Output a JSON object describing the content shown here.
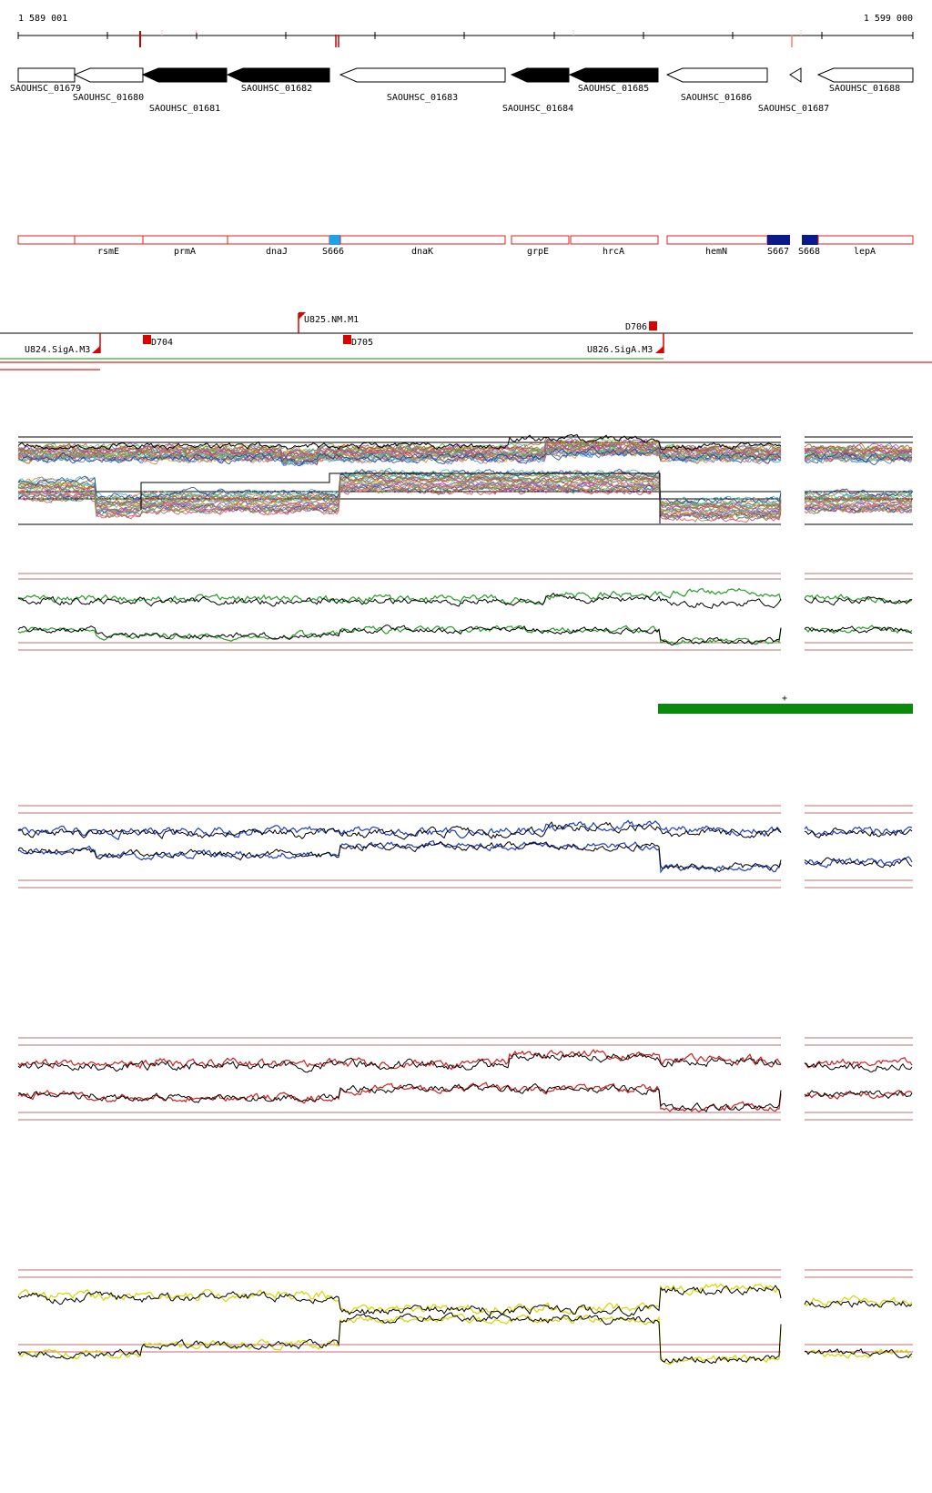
{
  "ruler": {
    "start_label": "1 589 001",
    "end_label": "1 599 000"
  },
  "genes": [
    {
      "id": "SAOUHSC_01679",
      "strand": "+",
      "filled": false,
      "label_row": 0
    },
    {
      "id": "SAOUHSC_01680",
      "strand": "-",
      "filled": false,
      "label_row": 1
    },
    {
      "id": "SAOUHSC_01681",
      "strand": "-",
      "filled": true,
      "label_row": 2
    },
    {
      "id": "SAOUHSC_01682",
      "strand": "-",
      "filled": true,
      "label_row": 0
    },
    {
      "id": "SAOUHSC_01683",
      "strand": "-",
      "filled": false,
      "label_row": 1
    },
    {
      "id": "SAOUHSC_01684",
      "strand": "-",
      "filled": true,
      "label_row": 2
    },
    {
      "id": "SAOUHSC_01685",
      "strand": "-",
      "filled": true,
      "label_row": 0
    },
    {
      "id": "SAOUHSC_01686",
      "strand": "-",
      "filled": false,
      "label_row": 1
    },
    {
      "id": "SAOUHSC_01687",
      "strand": "-",
      "filled": false,
      "label_row": 2
    },
    {
      "id": "SAOUHSC_01688",
      "strand": "-",
      "filled": false,
      "label_row": 0
    }
  ],
  "features": [
    {
      "label": "",
      "color": "#ffffff"
    },
    {
      "label": "rsmE",
      "color": "#ffffff"
    },
    {
      "label": "prmA",
      "color": "#ffffff"
    },
    {
      "label": "dnaJ",
      "color": "#ffffff"
    },
    {
      "label": "S666",
      "color": "#1aa3e8"
    },
    {
      "label": "dnaK",
      "color": "#ffffff"
    },
    {
      "label": "grpE",
      "color": "#ffffff"
    },
    {
      "label": "hrcA",
      "color": "#ffffff"
    },
    {
      "label": "hemN",
      "color": "#ffffff"
    },
    {
      "label": "S667",
      "color": "#0a1a8c"
    },
    {
      "label": "S668",
      "color": "#0a1a8c"
    },
    {
      "label": "lepA",
      "color": "#ffffff"
    }
  ],
  "promoters": [
    {
      "label": "U825.NM.M1",
      "strand": "+"
    },
    {
      "label": "U824.SigA.M3",
      "strand": "-"
    },
    {
      "label": "U826.SigA.M3",
      "strand": "-"
    }
  ],
  "terminators": [
    {
      "label": "D704"
    },
    {
      "label": "D705"
    },
    {
      "label": "D706"
    }
  ],
  "green_track": {
    "marker": "+",
    "color": "#0a8a0a"
  },
  "panel_colors": {
    "summary": "#2a9a2a",
    "blue": "#1f3fbf",
    "red": "#cc2020",
    "yellow": "#d6d600",
    "border": "#a04040"
  }
}
